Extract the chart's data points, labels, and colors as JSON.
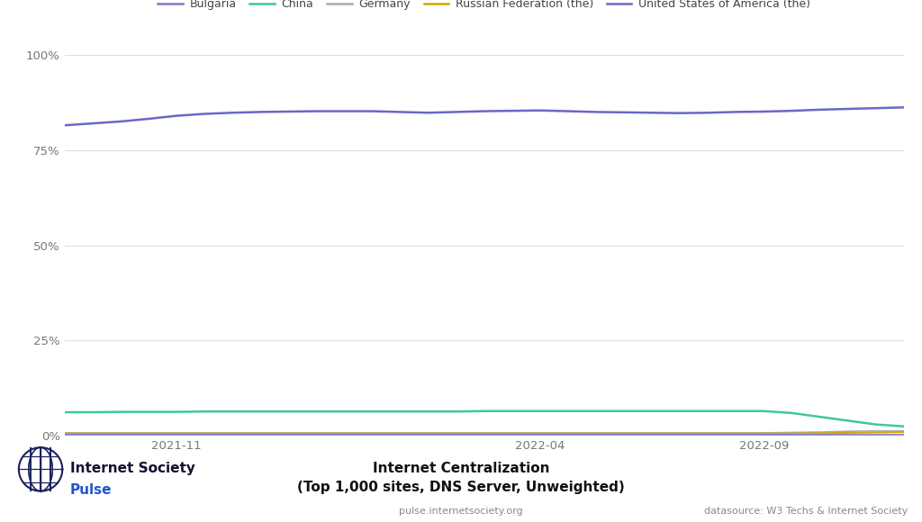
{
  "title_line1": "Internet Centralization",
  "title_line2": "(Top 1,000 sites, DNS Server, Unweighted)",
  "subtitle": "pulse.internetsociety.org",
  "datasource": "datasource: W3 Techs & Internet Society",
  "legend_labels": [
    "Bulgaria",
    "China",
    "Germany",
    "Russian Federation (the)",
    "United States of America (the)"
  ],
  "line_colors": {
    "Bulgaria": "#7878cc",
    "China": "#3dc8a0",
    "Germany": "#aaaaaa",
    "Russian Federation (the)": "#d4a800",
    "United States of America (the)": "#6868c8"
  },
  "x_ticks": [
    "2021-11",
    "2022-04",
    "2022-09"
  ],
  "x_tick_positions": [
    4,
    17,
    25
  ],
  "ylim": [
    0,
    1.0
  ],
  "yticks": [
    0,
    0.25,
    0.5,
    0.75,
    1.0
  ],
  "ytick_labels": [
    "0%",
    "25%",
    "50%",
    "75%",
    "100%"
  ],
  "background_color": "#ffffff",
  "grid_color": "#dddddd",
  "usa_data": [
    0.815,
    0.82,
    0.825,
    0.832,
    0.84,
    0.845,
    0.848,
    0.85,
    0.851,
    0.852,
    0.852,
    0.852,
    0.85,
    0.848,
    0.85,
    0.852,
    0.853,
    0.854,
    0.852,
    0.85,
    0.849,
    0.848,
    0.847,
    0.848,
    0.85,
    0.851,
    0.853,
    0.856,
    0.858,
    0.86,
    0.862
  ],
  "china_data": [
    0.062,
    0.062,
    0.063,
    0.063,
    0.063,
    0.064,
    0.064,
    0.064,
    0.064,
    0.064,
    0.064,
    0.064,
    0.064,
    0.064,
    0.064,
    0.065,
    0.065,
    0.065,
    0.065,
    0.065,
    0.065,
    0.065,
    0.065,
    0.065,
    0.065,
    0.065,
    0.06,
    0.05,
    0.04,
    0.03,
    0.025
  ],
  "germany_data": [
    0.008,
    0.008,
    0.008,
    0.008,
    0.008,
    0.008,
    0.008,
    0.008,
    0.008,
    0.008,
    0.008,
    0.008,
    0.008,
    0.008,
    0.008,
    0.008,
    0.008,
    0.008,
    0.008,
    0.008,
    0.008,
    0.008,
    0.008,
    0.008,
    0.008,
    0.008,
    0.009,
    0.01,
    0.012,
    0.013,
    0.013
  ],
  "russia_data": [
    0.006,
    0.006,
    0.006,
    0.006,
    0.006,
    0.006,
    0.006,
    0.006,
    0.006,
    0.006,
    0.006,
    0.006,
    0.006,
    0.006,
    0.006,
    0.006,
    0.006,
    0.006,
    0.006,
    0.006,
    0.006,
    0.006,
    0.006,
    0.006,
    0.006,
    0.006,
    0.006,
    0.007,
    0.008,
    0.009,
    0.01
  ],
  "bulgaria_data": [
    0.003,
    0.003,
    0.003,
    0.003,
    0.003,
    0.003,
    0.003,
    0.003,
    0.003,
    0.003,
    0.003,
    0.003,
    0.003,
    0.003,
    0.003,
    0.003,
    0.003,
    0.003,
    0.003,
    0.003,
    0.003,
    0.003,
    0.003,
    0.003,
    0.003,
    0.003,
    0.003,
    0.003,
    0.003,
    0.003,
    0.003
  ],
  "n_points": 31,
  "logo_text_1": "Internet Society",
  "logo_text_2": "Pulse"
}
